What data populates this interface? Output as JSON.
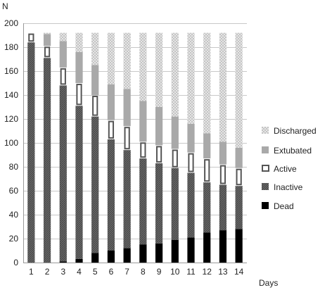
{
  "chart_data": {
    "type": "bar",
    "stacked": true,
    "ylabel": "N",
    "xlabel": "Days",
    "ylim": [
      0,
      200
    ],
    "yticks": [
      0,
      20,
      40,
      60,
      80,
      100,
      120,
      140,
      160,
      180,
      200
    ],
    "grid": true,
    "legend_position": "right",
    "categories": [
      "1",
      "2",
      "3",
      "4",
      "5",
      "6",
      "7",
      "8",
      "9",
      "10",
      "11",
      "12",
      "13",
      "14"
    ],
    "series": [
      {
        "name": "Dead",
        "color": "#000000",
        "pattern": "solid",
        "values": [
          0,
          0,
          1,
          3,
          8,
          10,
          12,
          15,
          16,
          19,
          21,
          25,
          27,
          28
        ]
      },
      {
        "name": "Inactive",
        "color": "#666666",
        "pattern": "hatched",
        "values": [
          184,
          171,
          147,
          128,
          114,
          93,
          82,
          72,
          67,
          60,
          54,
          42,
          38,
          36
        ]
      },
      {
        "name": "Active",
        "color": "#ffffff",
        "pattern": "outlined",
        "values": [
          8,
          10,
          15,
          19,
          18,
          16,
          20,
          14,
          15,
          16,
          17,
          20,
          17,
          15
        ]
      },
      {
        "name": "Extubated",
        "color": "#aaaaaa",
        "pattern": "solid",
        "values": [
          0,
          10,
          22,
          26,
          25,
          30,
          31,
          34,
          32,
          27,
          24,
          21,
          19,
          17
        ]
      },
      {
        "name": "Discharged",
        "color": "#dddddd",
        "pattern": "dotted",
        "values": [
          0,
          1,
          7,
          16,
          27,
          43,
          47,
          57,
          62,
          70,
          76,
          84,
          91,
          96
        ]
      }
    ],
    "legend_order": [
      "Discharged",
      "Extubated",
      "Active",
      "Inactive",
      "Dead"
    ]
  }
}
